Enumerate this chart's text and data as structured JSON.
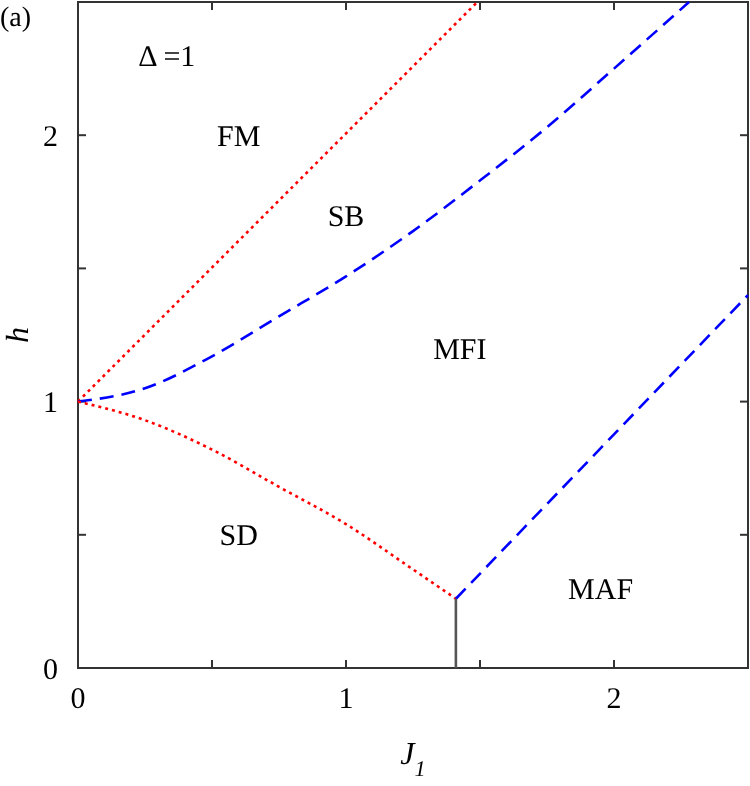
{
  "chart_data": {
    "type": "line",
    "xlabel": "J$_{1}$",
    "ylabel": "h",
    "xlim": [
      0,
      2.5
    ],
    "ylim": [
      0,
      2.5
    ],
    "xticks": [
      0,
      {
        "value": 0.5,
        "label": null
      },
      1,
      {
        "value": 1.5,
        "label": null
      },
      2
    ],
    "yticks": [
      0,
      {
        "value": 0.5,
        "label": null
      },
      1,
      {
        "value": 1.5,
        "label": null
      },
      2
    ],
    "grid": false,
    "marker": "none",
    "series": [
      {
        "color": "#ff0000",
        "line_style": "dotted",
        "x": [
          0,
          1.49
        ],
        "values": [
          1,
          2.5
        ]
      },
      {
        "color": "#0000ff",
        "line_style": "dashed",
        "x": [
          0,
          0.25,
          0.5,
          0.75,
          1,
          1.25,
          1.5,
          1.75,
          2,
          2.28
        ],
        "values": [
          1,
          1.05,
          1.17,
          1.32,
          1.47,
          1.64,
          1.83,
          2.03,
          2.25,
          2.5
        ]
      },
      {
        "color": "#ff0000",
        "line_style": "dotted",
        "x": [
          0,
          0.25,
          0.5,
          0.75,
          1,
          1.25,
          1.41
        ],
        "values": [
          1,
          0.93,
          0.82,
          0.68,
          0.54,
          0.37,
          0.26
        ]
      },
      {
        "color": "#0000ff",
        "line_style": "dashed",
        "x": [
          1.41,
          2.5
        ],
        "values": [
          0.26,
          1.4
        ]
      },
      {
        "color": "#555555",
        "line_style": "solid",
        "x": [
          1.41,
          1.41
        ],
        "values": [
          0,
          0.26
        ]
      }
    ],
    "annotations": [
      "(a)",
      "Δ =1",
      "FM",
      "SB",
      "MFI",
      "SD",
      "MAF"
    ]
  }
}
